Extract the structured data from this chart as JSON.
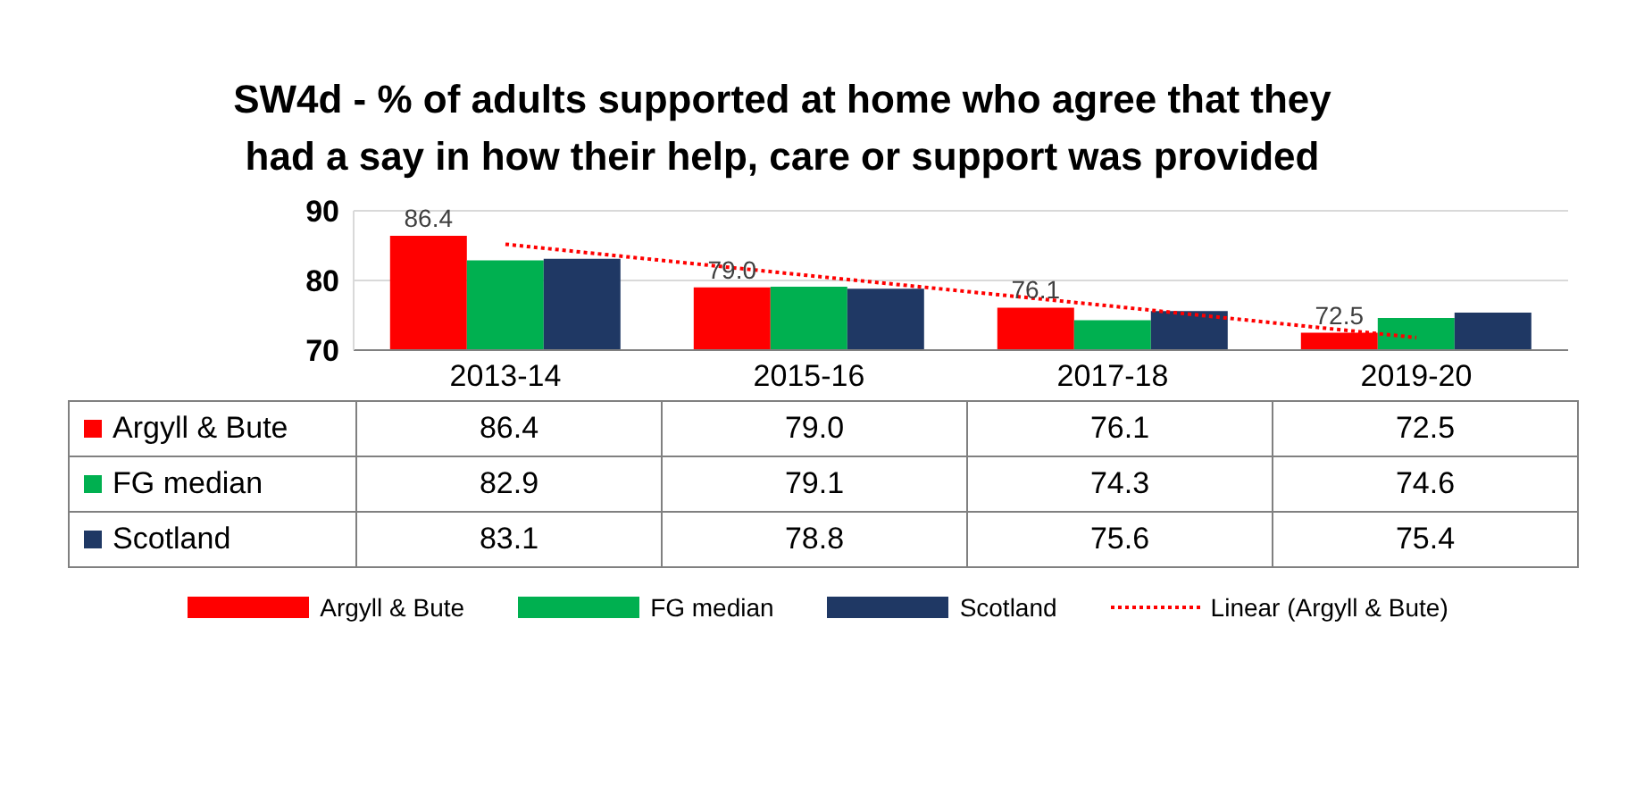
{
  "chart_data": {
    "type": "bar",
    "title": "SW4d - % of adults supported at home who agree that they had a say in how their help, care or support was provided",
    "categories": [
      "2013-14",
      "2015-16",
      "2017-18",
      "2019-20"
    ],
    "series": [
      {
        "name": "Argyll & Bute",
        "color": "#ff0000",
        "values": [
          86.4,
          79.0,
          76.1,
          72.5
        ],
        "value_labels": [
          "86.4",
          "79.0",
          "76.1",
          "72.5"
        ]
      },
      {
        "name": "FG median",
        "color": "#00b050",
        "values": [
          82.9,
          79.1,
          74.3,
          74.6
        ],
        "value_labels": [
          "82.9",
          "79.1",
          "74.3",
          "74.6"
        ]
      },
      {
        "name": "Scotland",
        "color": "#1f3864",
        "values": [
          83.1,
          78.8,
          75.6,
          75.4
        ],
        "value_labels": [
          "83.1",
          "78.8",
          "75.6",
          "75.4"
        ]
      },
      {
        "name": "Linear (Argyll & Bute)",
        "type": "line",
        "color": "#ff0000",
        "line_style": "dotted",
        "marker": "none",
        "values": [
          85.2,
          80.7,
          76.3,
          71.8
        ]
      }
    ],
    "ylim": [
      70,
      90
    ],
    "yticks": [
      70,
      80,
      90
    ],
    "grid": "y",
    "legend": "bottom"
  }
}
